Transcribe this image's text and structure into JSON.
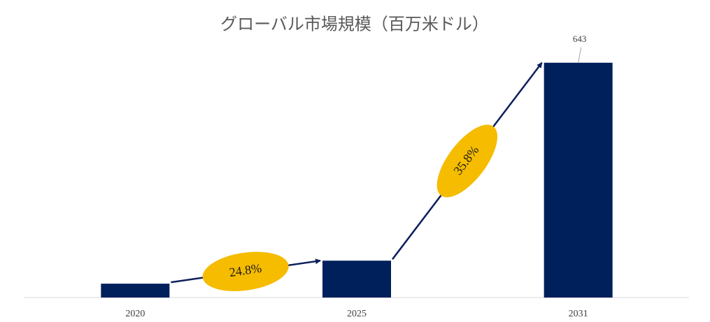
{
  "chart_data": {
    "type": "bar",
    "title": "グローバル市場規模（百万米ドル）",
    "categories": [
      "2020",
      "2025",
      "2031"
    ],
    "values": [
      38,
      101,
      643
    ],
    "value_labels": [
      null,
      null,
      "643"
    ],
    "color": "#00205b",
    "ylim": [
      0,
      700
    ],
    "annotations": [
      "24.8%",
      "35.8%"
    ],
    "annotation_color": "#f5bc00",
    "arrow_color": "#0d1f5c"
  }
}
